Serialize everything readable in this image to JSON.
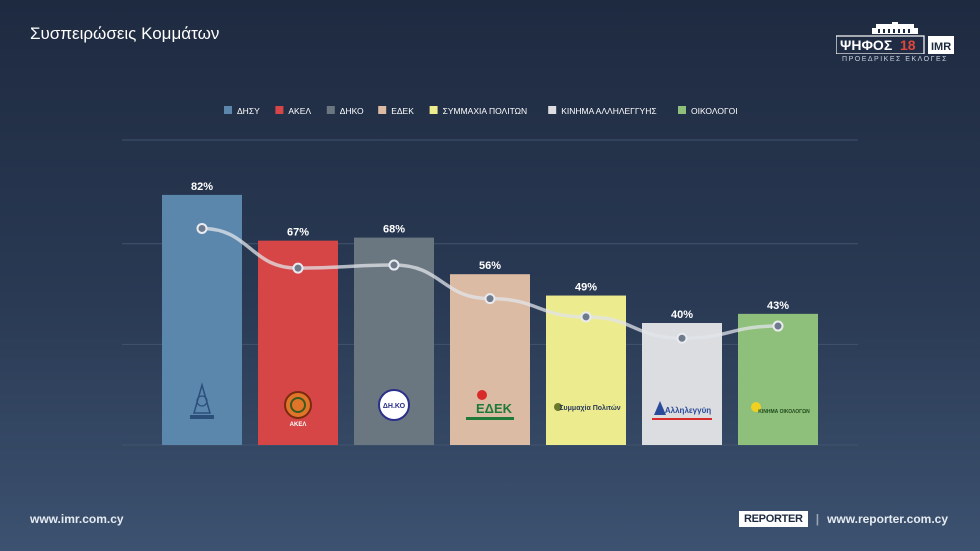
{
  "header": {
    "title": "Συσπειρώσεις Κομμάτων",
    "brand_name": "ΨΗΦΟΣ",
    "brand_year": "18",
    "brand_partner": "IMR",
    "brand_subtitle": "ΠΡΟΕΔΡΙΚΕΣ ΕΚΛΟΓΕΣ"
  },
  "footer": {
    "left_url": "www.imr.com.cy",
    "reporter_badge": "REPORTER",
    "separator": "|",
    "right_url": "www.reporter.com.cy"
  },
  "chart_data": {
    "type": "bar",
    "title": "Συσπειρώσεις Κομμάτων",
    "categories": [
      "ΔΗΣΥ",
      "ΑΚΕΛ",
      "ΔΗΚΟ",
      "ΕΔΕΚ",
      "ΣΥΜΜΑΧΙΑ ΠΟΛΙΤΩΝ",
      "ΚΙΝΗΜΑ ΑΛΛΗΛΕΓΓΥΗΣ",
      "ΟΙΚΟΛΟΓΟΙ"
    ],
    "values": [
      82,
      67,
      68,
      56,
      49,
      40,
      43
    ],
    "value_labels": [
      "82%",
      "67%",
      "68%",
      "56%",
      "49%",
      "40%",
      "43%"
    ],
    "line_values": [
      71,
      58,
      59,
      48,
      42,
      35,
      39
    ],
    "colors": [
      "#5b87ad",
      "#d64646",
      "#6b7780",
      "#dcbba5",
      "#ecec8f",
      "#dcdde0",
      "#8fc07b"
    ],
    "logo_labels": [
      "",
      "ΑΚΕΛ",
      "ΔΗ.ΚΟ",
      "ΕΔΕΚ",
      "Συμμαχία Πολιτών",
      "Αλληλεγγύη",
      "ΚΙΝΗΜΑ ΟΙΚΟΛΟΓΩΝ"
    ],
    "ylim": [
      0,
      100
    ],
    "grid": true,
    "legend_position": "top-center",
    "xlabel": "",
    "ylabel": ""
  }
}
